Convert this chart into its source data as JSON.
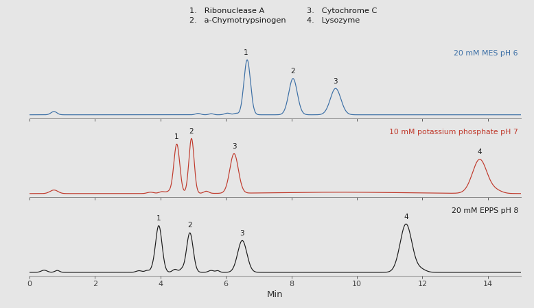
{
  "bg_color": "#e6e6e6",
  "colors": [
    "#3a6ea5",
    "#c0392b",
    "#1a1a1a"
  ],
  "label_colors": [
    "#3a6ea5",
    "#c0392b",
    "#1a1a1a"
  ],
  "xlim": [
    0,
    15
  ],
  "xlabel": "Min",
  "trace_labels": [
    "20 mM MES pH 6",
    "10 mM potassium phosphate pH 7",
    "20 mM EPPS pH 8"
  ],
  "peak_annotations": [
    [
      [
        6.6,
        1.0,
        "1"
      ],
      [
        8.05,
        0.66,
        "2"
      ],
      [
        9.35,
        0.48,
        "3"
      ]
    ],
    [
      [
        4.5,
        0.9,
        "1"
      ],
      [
        4.95,
        1.0,
        "2"
      ],
      [
        6.25,
        0.72,
        "3"
      ],
      [
        13.75,
        0.62,
        "4"
      ]
    ],
    [
      [
        3.95,
        0.85,
        "1"
      ],
      [
        4.9,
        0.72,
        "2"
      ],
      [
        6.5,
        0.58,
        "3"
      ],
      [
        11.5,
        0.88,
        "4"
      ]
    ]
  ]
}
